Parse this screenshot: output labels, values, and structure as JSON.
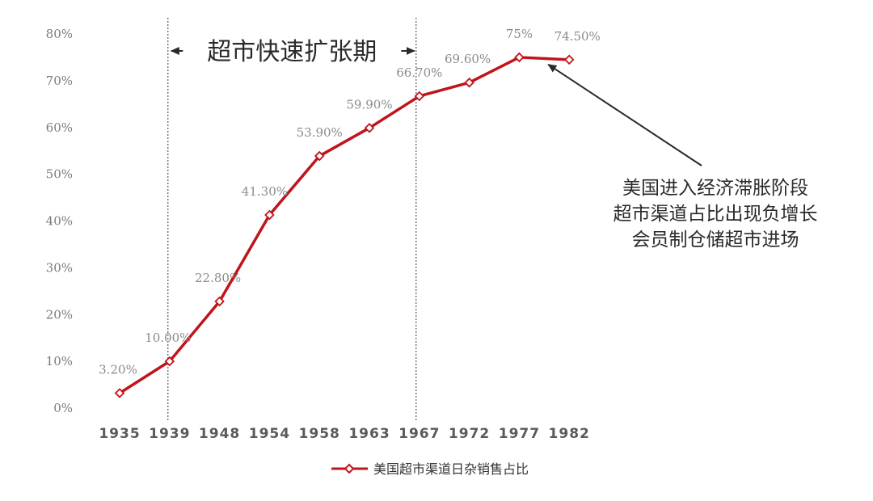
{
  "chart_data": {
    "type": "line",
    "categories": [
      "1935",
      "1939",
      "1948",
      "1954",
      "1958",
      "1963",
      "1967",
      "1972",
      "1977",
      "1982"
    ],
    "series": [
      {
        "name": "美国超市渠道日杂销售占比",
        "values": [
          3.2,
          10.0,
          22.8,
          41.3,
          53.9,
          59.9,
          66.7,
          69.6,
          75.0,
          74.5
        ],
        "data_labels": [
          "3.20%",
          "10.00%",
          "22.80%",
          "41.30%",
          "53.90%",
          "59.90%",
          "66.70%",
          "69.60%",
          "75%",
          "74.50%"
        ],
        "color": "#c0141b",
        "marker": "diamond-hollow"
      }
    ],
    "y_ticks": [
      "0%",
      "10%",
      "20%",
      "30%",
      "40%",
      "50%",
      "60%",
      "70%",
      "80%"
    ],
    "ylim": [
      0,
      80
    ],
    "grid": false,
    "legend_position": "bottom",
    "annotations": {
      "period_label": "超市快速扩张期",
      "period_start": "1939",
      "period_end": "1967",
      "note_lines": [
        "美国进入经济滞胀阶段",
        "超市渠道占比出现负增长",
        "会员制仓储超市进场"
      ],
      "note_target": "1982"
    }
  }
}
